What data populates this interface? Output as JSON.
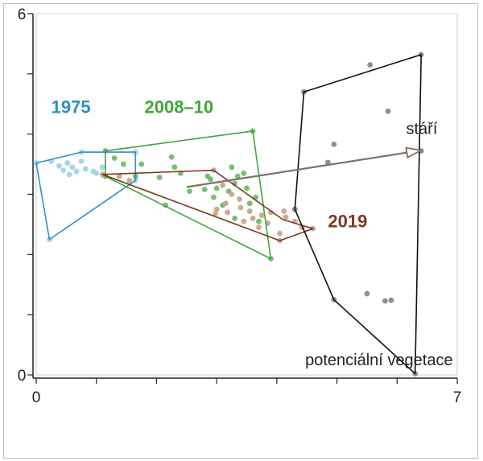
{
  "chart_data": {
    "type": "scatter",
    "xlim": [
      0,
      7
    ],
    "ylim": [
      0,
      6
    ],
    "x_ticks": [
      0,
      1,
      2,
      3,
      4,
      5,
      6,
      7
    ],
    "y_ticks": [
      0,
      1,
      2,
      3,
      4,
      5,
      6
    ],
    "x_tick_labels": [
      "0",
      "7"
    ],
    "y_tick_labels": [
      "0",
      "6"
    ],
    "grid": false,
    "series": [
      {
        "name": "1975",
        "color": "#2f8fc4",
        "point_color": "#9fd3ea",
        "hull": [
          [
            0.0,
            3.52
          ],
          [
            0.22,
            2.25
          ],
          [
            1.65,
            3.23
          ],
          [
            1.65,
            3.7
          ],
          [
            0.75,
            3.7
          ]
        ],
        "points": [
          [
            0.0,
            3.52
          ],
          [
            0.22,
            2.25
          ],
          [
            0.25,
            3.55
          ],
          [
            0.38,
            3.47
          ],
          [
            0.45,
            3.4
          ],
          [
            0.52,
            3.52
          ],
          [
            0.6,
            3.45
          ],
          [
            0.67,
            3.38
          ],
          [
            0.55,
            3.33
          ],
          [
            0.75,
            3.55
          ],
          [
            0.82,
            3.42
          ],
          [
            0.95,
            3.38
          ],
          [
            1.0,
            3.35
          ],
          [
            1.1,
            3.45
          ],
          [
            1.12,
            3.32
          ],
          [
            0.75,
            3.7
          ],
          [
            1.65,
            3.7
          ],
          [
            1.65,
            3.23
          ]
        ]
      },
      {
        "name": "2008–10",
        "color": "#3fa63a",
        "point_color": "#6fbd68",
        "hull": [
          [
            1.15,
            3.72
          ],
          [
            3.6,
            4.05
          ],
          [
            3.9,
            1.93
          ],
          [
            1.15,
            3.3
          ]
        ],
        "points": [
          [
            1.15,
            3.72
          ],
          [
            3.6,
            4.05
          ],
          [
            3.9,
            1.93
          ],
          [
            1.15,
            3.3
          ],
          [
            1.3,
            3.6
          ],
          [
            1.45,
            3.5
          ],
          [
            1.75,
            3.5
          ],
          [
            2.25,
            3.62
          ],
          [
            2.05,
            3.28
          ],
          [
            2.4,
            3.35
          ],
          [
            2.55,
            3.05
          ],
          [
            2.15,
            2.82
          ],
          [
            2.3,
            3.45
          ],
          [
            2.85,
            3.3
          ],
          [
            3.0,
            3.1
          ],
          [
            3.2,
            3.05
          ],
          [
            3.25,
            3.45
          ],
          [
            3.35,
            3.3
          ],
          [
            3.45,
            3.35
          ],
          [
            3.5,
            3.1
          ],
          [
            3.65,
            2.95
          ],
          [
            2.8,
            3.08
          ],
          [
            2.95,
            2.95
          ],
          [
            3.1,
            2.82
          ],
          [
            3.3,
            2.6
          ],
          [
            3.55,
            2.85
          ],
          [
            3.7,
            2.55
          ],
          [
            3.3,
            3.18
          ],
          [
            2.9,
            3.25
          ],
          [
            1.65,
            3.3
          ]
        ]
      },
      {
        "name": "2019",
        "color": "#7a3a22",
        "point_color": "#c9a48f",
        "hull": [
          [
            1.1,
            3.33
          ],
          [
            2.95,
            3.4
          ],
          [
            4.1,
            2.58
          ],
          [
            4.6,
            2.43
          ],
          [
            4.05,
            2.23
          ],
          [
            1.1,
            3.33
          ]
        ],
        "points": [
          [
            1.1,
            3.33
          ],
          [
            1.38,
            3.3
          ],
          [
            1.55,
            3.23
          ],
          [
            2.95,
            3.4
          ],
          [
            4.6,
            2.43
          ],
          [
            4.05,
            2.23
          ],
          [
            3.1,
            3.15
          ],
          [
            3.25,
            3.0
          ],
          [
            3.38,
            2.92
          ],
          [
            3.15,
            2.85
          ],
          [
            3.0,
            2.75
          ],
          [
            2.98,
            2.68
          ],
          [
            3.18,
            2.7
          ],
          [
            3.4,
            2.78
          ],
          [
            3.55,
            2.72
          ],
          [
            3.6,
            2.6
          ],
          [
            3.75,
            2.65
          ],
          [
            3.45,
            2.55
          ],
          [
            3.7,
            2.45
          ],
          [
            3.85,
            2.52
          ],
          [
            3.9,
            2.7
          ],
          [
            4.12,
            2.72
          ],
          [
            4.15,
            2.62
          ],
          [
            4.3,
            2.55
          ],
          [
            4.42,
            2.45
          ],
          [
            4.05,
            2.35
          ]
        ]
      },
      {
        "name": "",
        "color": "#111111",
        "point_color": "#8a8a8a",
        "hull": [
          [
            4.45,
            4.7
          ],
          [
            6.4,
            5.32
          ],
          [
            6.3,
            0.02
          ],
          [
            4.95,
            1.25
          ],
          [
            4.3,
            2.75
          ],
          [
            4.45,
            4.7
          ]
        ],
        "points": [
          [
            4.45,
            4.7
          ],
          [
            6.4,
            5.32
          ],
          [
            6.3,
            0.02
          ],
          [
            4.95,
            1.25
          ],
          [
            4.3,
            2.75
          ],
          [
            5.55,
            5.15
          ],
          [
            5.85,
            4.38
          ],
          [
            4.95,
            3.83
          ],
          [
            4.85,
            3.53
          ],
          [
            6.4,
            3.72
          ],
          [
            5.5,
            1.35
          ],
          [
            5.8,
            1.23
          ],
          [
            5.9,
            1.24
          ]
        ]
      }
    ],
    "arrow": {
      "label": "stáří",
      "from": [
        2.5,
        3.12
      ],
      "to": [
        6.4,
        3.73
      ],
      "color": "#7c7268"
    },
    "annotations": [
      {
        "text": "1975",
        "x": 0.25,
        "y": 4.35,
        "color": "#2f8fc4",
        "bold": true
      },
      {
        "text": "2008–10",
        "x": 1.8,
        "y": 4.35,
        "color": "#3fa63a",
        "bold": true
      },
      {
        "text": "2019",
        "x": 4.85,
        "y": 2.45,
        "color": "#7a3a22",
        "bold": true
      },
      {
        "text": "stáří",
        "x": 6.15,
        "y": 4.0,
        "color": "#222222",
        "bold": false
      },
      {
        "text": "potenciální vegetace",
        "x": 5.7,
        "y": 0.16,
        "color": "#222222",
        "bold": false
      }
    ]
  }
}
